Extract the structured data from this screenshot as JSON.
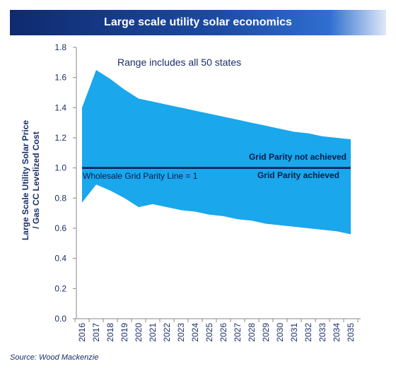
{
  "header": {
    "title": "Large scale utility solar economics"
  },
  "footer": {
    "source": "Source: Wood Mackenzie"
  },
  "colors": {
    "band": "#1aa7ec",
    "line": "#0b1a4a",
    "text": "#1a2f6b",
    "banner": "#1c4aa3"
  },
  "chart_data": {
    "type": "area",
    "title": "Large scale utility solar economics",
    "xlabel": "",
    "ylabel": "Large Scale Utility Solar Price / Gas CC Levelized Cost",
    "ylim": [
      0,
      1.8
    ],
    "yticks": [
      "0.0",
      "0.2",
      "0.4",
      "0.6",
      "0.8",
      "1.0",
      "1.2",
      "1.4",
      "1.6",
      "1.8"
    ],
    "grid": false,
    "categories": [
      "2016",
      "2017",
      "2018",
      "2019",
      "2020",
      "2021",
      "2022",
      "2023",
      "2024",
      "2025",
      "2026",
      "2027",
      "2028",
      "2029",
      "2030",
      "2031",
      "2032",
      "2033",
      "2034",
      "2035"
    ],
    "upper": [
      1.4,
      1.65,
      1.59,
      1.52,
      1.46,
      1.44,
      1.42,
      1.4,
      1.38,
      1.36,
      1.34,
      1.32,
      1.3,
      1.28,
      1.26,
      1.24,
      1.23,
      1.21,
      1.2,
      1.19
    ],
    "lower": [
      0.77,
      0.89,
      0.85,
      0.8,
      0.74,
      0.76,
      0.74,
      0.72,
      0.71,
      0.69,
      0.68,
      0.66,
      0.65,
      0.63,
      0.62,
      0.61,
      0.6,
      0.59,
      0.58,
      0.56
    ],
    "parity_line": 1.0,
    "annotations": {
      "range": "Range includes all 50 states",
      "not_achieved": "Grid Parity not achieved",
      "achieved": "Grid Parity achieved",
      "wholesale": "Wholesale Grid  Parity Line = 1"
    }
  }
}
